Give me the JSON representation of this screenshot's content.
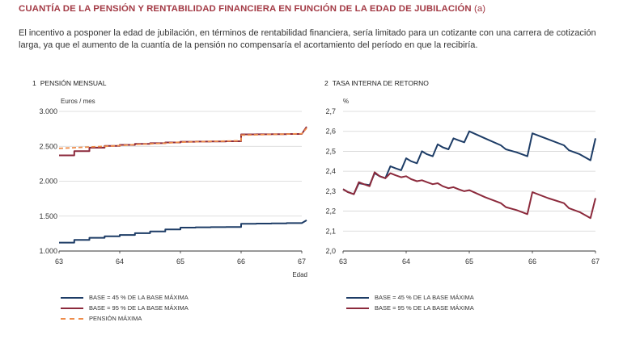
{
  "title": "CUANTÍA DE LA PENSIÓN Y RENTABILIDAD FINANCIERA EN FUNCIÓN DE LA EDAD DE JUBILACIÓN",
  "title_suffix": "(a)",
  "intro": "El incentivo a posponer la edad de jubilación, en términos de rentabilidad financiera, sería limitado para un cotizante con una carrera de cotización larga, ya que el aumento de la cuantía de la pensión no compensaría el acortamiento del período en que la recibiría.",
  "colors": {
    "navy": "#1d3c66",
    "maroon": "#8c2a3c",
    "orange": "#ee8c4a",
    "title": "#a33a45"
  },
  "chart_data": [
    {
      "type": "line",
      "number": "1",
      "title": "PENSIÓN MENSUAL",
      "ylabel": "Euros / mes",
      "xlabel": "Edad",
      "xlim": [
        63,
        67
      ],
      "ylim": [
        1000,
        3000
      ],
      "x_ticks": [
        "63",
        "64",
        "65",
        "66",
        "67"
      ],
      "y_ticks": [
        "1.000",
        "1.500",
        "2.000",
        "2.500",
        "3.000"
      ],
      "y_tick_values": [
        1000,
        1500,
        2000,
        2500,
        3000
      ],
      "grid": true,
      "legend_position": "bottom",
      "series": [
        {
          "name": "BASE = 45 % DE LA BASE MÁXIMA",
          "color": "#1d3c66",
          "style": "solid",
          "x": [
            63,
            63.25,
            63.25,
            63.5,
            63.5,
            63.75,
            63.75,
            64,
            64,
            64.25,
            64.25,
            64.5,
            64.5,
            64.75,
            64.75,
            65,
            65,
            65.25,
            65.25,
            65.5,
            65.5,
            65.75,
            65.75,
            66,
            66,
            66.25,
            66.25,
            66.5,
            66.5,
            66.75,
            66.75,
            67,
            67.08
          ],
          "y": [
            1120,
            1120,
            1160,
            1160,
            1190,
            1190,
            1210,
            1210,
            1230,
            1230,
            1255,
            1255,
            1280,
            1280,
            1310,
            1310,
            1335,
            1335,
            1340,
            1340,
            1342,
            1342,
            1344,
            1344,
            1390,
            1390,
            1393,
            1393,
            1396,
            1396,
            1400,
            1400,
            1440
          ]
        },
        {
          "name": "BASE = 95 % DE LA BASE MÁXIMA",
          "color": "#8c2a3c",
          "style": "solid",
          "x": [
            63,
            63.25,
            63.25,
            63.5,
            63.5,
            63.75,
            63.75,
            64,
            64,
            64.25,
            64.25,
            64.5,
            64.5,
            64.75,
            64.75,
            65,
            65,
            65.25,
            65.25,
            65.5,
            65.5,
            65.75,
            65.75,
            66,
            66,
            66.25,
            66.25,
            66.5,
            66.5,
            66.75,
            66.75,
            67,
            67.08
          ],
          "y": [
            2370,
            2370,
            2430,
            2430,
            2480,
            2480,
            2505,
            2505,
            2520,
            2520,
            2535,
            2535,
            2545,
            2545,
            2555,
            2555,
            2565,
            2565,
            2568,
            2568,
            2570,
            2570,
            2572,
            2572,
            2670,
            2670,
            2672,
            2672,
            2674,
            2674,
            2676,
            2676,
            2780
          ]
        },
        {
          "name": "PENSIÓN MÁXIMA",
          "color": "#ee8c4a",
          "style": "dashed",
          "x": [
            63,
            63.25,
            63.5,
            63.75,
            64,
            64.25,
            64.5,
            64.75,
            65,
            65.25,
            65.5,
            65.75,
            66,
            66,
            66.25,
            66.5,
            66.75,
            67,
            67.08
          ],
          "y": [
            2470,
            2480,
            2490,
            2500,
            2510,
            2525,
            2535,
            2545,
            2560,
            2565,
            2570,
            2575,
            2580,
            2660,
            2665,
            2670,
            2675,
            2680,
            2760
          ]
        }
      ]
    },
    {
      "type": "line",
      "number": "2",
      "title": "TASA INTERNA DE RETORNO",
      "ylabel": "%",
      "xlim": [
        63,
        67
      ],
      "ylim": [
        2.0,
        2.7
      ],
      "x_ticks": [
        "63",
        "64",
        "65",
        "66",
        "67"
      ],
      "y_ticks": [
        "2,0",
        "2,1",
        "2,2",
        "2,3",
        "2,4",
        "2,5",
        "2,6",
        "2,7"
      ],
      "y_tick_values": [
        2.0,
        2.1,
        2.2,
        2.3,
        2.4,
        2.5,
        2.6,
        2.7
      ],
      "grid": true,
      "legend_position": "bottom",
      "series": [
        {
          "name": "BASE = 45 % DE LA BASE MÁXIMA",
          "color": "#1d3c66",
          "style": "solid",
          "x": [
            63,
            63.08,
            63.17,
            63.25,
            63.33,
            63.42,
            63.5,
            63.58,
            63.67,
            63.75,
            63.83,
            63.92,
            64,
            64.08,
            64.17,
            64.25,
            64.33,
            64.42,
            64.5,
            64.58,
            64.67,
            64.75,
            64.83,
            64.92,
            65,
            65.25,
            65.5,
            65.58,
            65.75,
            65.92,
            66,
            66.25,
            66.5,
            66.58,
            66.75,
            66.92,
            67
          ],
          "y": [
            2.31,
            2.295,
            2.285,
            2.34,
            2.335,
            2.33,
            2.39,
            2.375,
            2.365,
            2.425,
            2.415,
            2.405,
            2.465,
            2.45,
            2.44,
            2.5,
            2.485,
            2.475,
            2.535,
            2.52,
            2.51,
            2.565,
            2.555,
            2.545,
            2.6,
            2.565,
            2.53,
            2.51,
            2.495,
            2.475,
            2.59,
            2.56,
            2.53,
            2.505,
            2.485,
            2.455,
            2.565
          ]
        },
        {
          "name": "BASE = 95 % DE LA BASE MÁXIMA",
          "color": "#8c2a3c",
          "style": "solid",
          "x": [
            63,
            63.08,
            63.17,
            63.25,
            63.33,
            63.42,
            63.5,
            63.58,
            63.67,
            63.75,
            63.83,
            63.92,
            64,
            64.08,
            64.17,
            64.25,
            64.33,
            64.42,
            64.5,
            64.58,
            64.67,
            64.75,
            64.83,
            64.92,
            65,
            65.25,
            65.5,
            65.58,
            65.75,
            65.92,
            66,
            66.25,
            66.5,
            66.58,
            66.75,
            66.92,
            67
          ],
          "y": [
            2.31,
            2.295,
            2.285,
            2.345,
            2.335,
            2.325,
            2.395,
            2.375,
            2.365,
            2.39,
            2.38,
            2.37,
            2.375,
            2.36,
            2.35,
            2.355,
            2.345,
            2.335,
            2.34,
            2.325,
            2.315,
            2.32,
            2.31,
            2.3,
            2.305,
            2.27,
            2.24,
            2.22,
            2.205,
            2.185,
            2.295,
            2.265,
            2.24,
            2.215,
            2.195,
            2.165,
            2.265
          ]
        }
      ]
    }
  ]
}
